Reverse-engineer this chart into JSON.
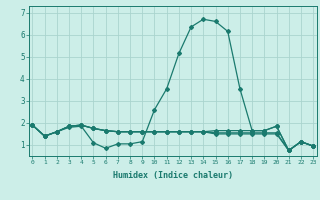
{
  "xlabel": "Humidex (Indice chaleur)",
  "x": [
    0,
    1,
    2,
    3,
    4,
    5,
    6,
    7,
    8,
    9,
    10,
    11,
    12,
    13,
    14,
    15,
    16,
    17,
    18,
    19,
    20,
    21,
    22,
    23
  ],
  "series1": [
    1.9,
    1.4,
    1.6,
    1.8,
    1.85,
    1.1,
    0.85,
    1.05,
    1.05,
    1.15,
    2.6,
    3.55,
    5.15,
    6.35,
    6.7,
    6.6,
    6.15,
    3.55,
    1.65,
    1.65,
    1.85,
    0.75,
    1.15,
    0.95
  ],
  "series2": [
    1.9,
    1.4,
    1.6,
    1.85,
    1.9,
    1.75,
    1.65,
    1.6,
    1.6,
    1.6,
    1.6,
    1.6,
    1.6,
    1.6,
    1.6,
    1.65,
    1.65,
    1.65,
    1.65,
    1.65,
    1.85,
    0.75,
    1.15,
    0.95
  ],
  "series3": [
    1.9,
    1.4,
    1.6,
    1.85,
    1.9,
    1.75,
    1.65,
    1.6,
    1.6,
    1.6,
    1.6,
    1.6,
    1.6,
    1.6,
    1.6,
    1.55,
    1.55,
    1.55,
    1.55,
    1.55,
    1.55,
    0.75,
    1.15,
    0.95
  ],
  "series4": [
    1.9,
    1.4,
    1.6,
    1.85,
    1.9,
    1.75,
    1.65,
    1.6,
    1.6,
    1.6,
    1.6,
    1.6,
    1.6,
    1.6,
    1.6,
    1.5,
    1.5,
    1.5,
    1.5,
    1.5,
    1.5,
    0.75,
    1.15,
    0.95
  ],
  "line_color": "#1a7a6e",
  "bg_color": "#cceee8",
  "grid_color": "#aad4ce",
  "ylim": [
    0.5,
    7.3
  ],
  "yticks": [
    1,
    2,
    3,
    4,
    5,
    6,
    7
  ],
  "xlim": [
    -0.3,
    23.3
  ],
  "marker": "D",
  "markersize": 2.0,
  "linewidth": 0.9
}
